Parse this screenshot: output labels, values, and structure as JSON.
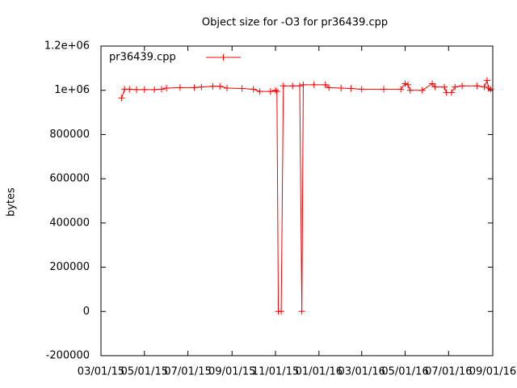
{
  "chart_data": {
    "type": "line",
    "title": "Object size for -O3 for pr36439.cpp",
    "y_label": "bytes",
    "x": [
      "03/30/15",
      "04/03/15",
      "04/10/15",
      "04/20/15",
      "05/01/15",
      "05/15/15",
      "05/25/15",
      "06/01/15",
      "06/20/15",
      "07/10/15",
      "07/20/15",
      "08/05/15",
      "08/15/15",
      "08/25/15",
      "09/15/15",
      "10/01/15",
      "10/10/15",
      "10/25/15",
      "11/01/15",
      "11/03/15",
      "11/05/15",
      "11/09/15",
      "11/12/15",
      "11/25/15",
      "12/05/15",
      "12/08/15",
      "12/10/15",
      "12/25/15",
      "01/10/16",
      "01/15/16",
      "02/01/16",
      "02/15/16",
      "03/01/16",
      "04/01/16",
      "04/25/16",
      "05/01/16",
      "05/05/16",
      "05/08/16",
      "05/25/16",
      "06/08/16",
      "06/12/16",
      "06/25/16",
      "06/28/16",
      "07/05/16",
      "07/10/16",
      "07/20/16",
      "08/10/16",
      "08/20/16",
      "08/24/16",
      "08/26/16",
      "08/29/16"
    ],
    "series": [
      {
        "name": "pr36439.cpp",
        "color": "#ff0000",
        "values": [
          965000,
          1005000,
          1005000,
          1003000,
          1003000,
          1003000,
          1005000,
          1010000,
          1012000,
          1012000,
          1015000,
          1018000,
          1018000,
          1010000,
          1008000,
          1005000,
          995000,
          995000,
          1000000,
          995000,
          0,
          0,
          1020000,
          1020000,
          1020000,
          0,
          1025000,
          1025000,
          1025000,
          1012000,
          1010000,
          1008000,
          1005000,
          1005000,
          1005000,
          1030000,
          1025000,
          1000000,
          1000000,
          1030000,
          1015000,
          1015000,
          990000,
          990000,
          1015000,
          1020000,
          1020000,
          1015000,
          1045000,
          1010000,
          1005000
        ]
      }
    ],
    "xlim": [
      "03/01/15",
      "09/01/16"
    ],
    "xticks": [
      "03/01/15",
      "05/01/15",
      "07/01/15",
      "09/01/15",
      "11/01/15",
      "01/01/16",
      "03/01/16",
      "05/01/16",
      "07/01/16",
      "09/01/16"
    ],
    "ylim": [
      -200000,
      1200000
    ],
    "yticks": [
      -200000,
      0,
      200000,
      400000,
      600000,
      800000,
      {
        "value": 1000000,
        "label": "1e+06"
      },
      {
        "value": 1200000,
        "label": "1.2e+06"
      }
    ],
    "grid": false,
    "legend": "top-left"
  }
}
